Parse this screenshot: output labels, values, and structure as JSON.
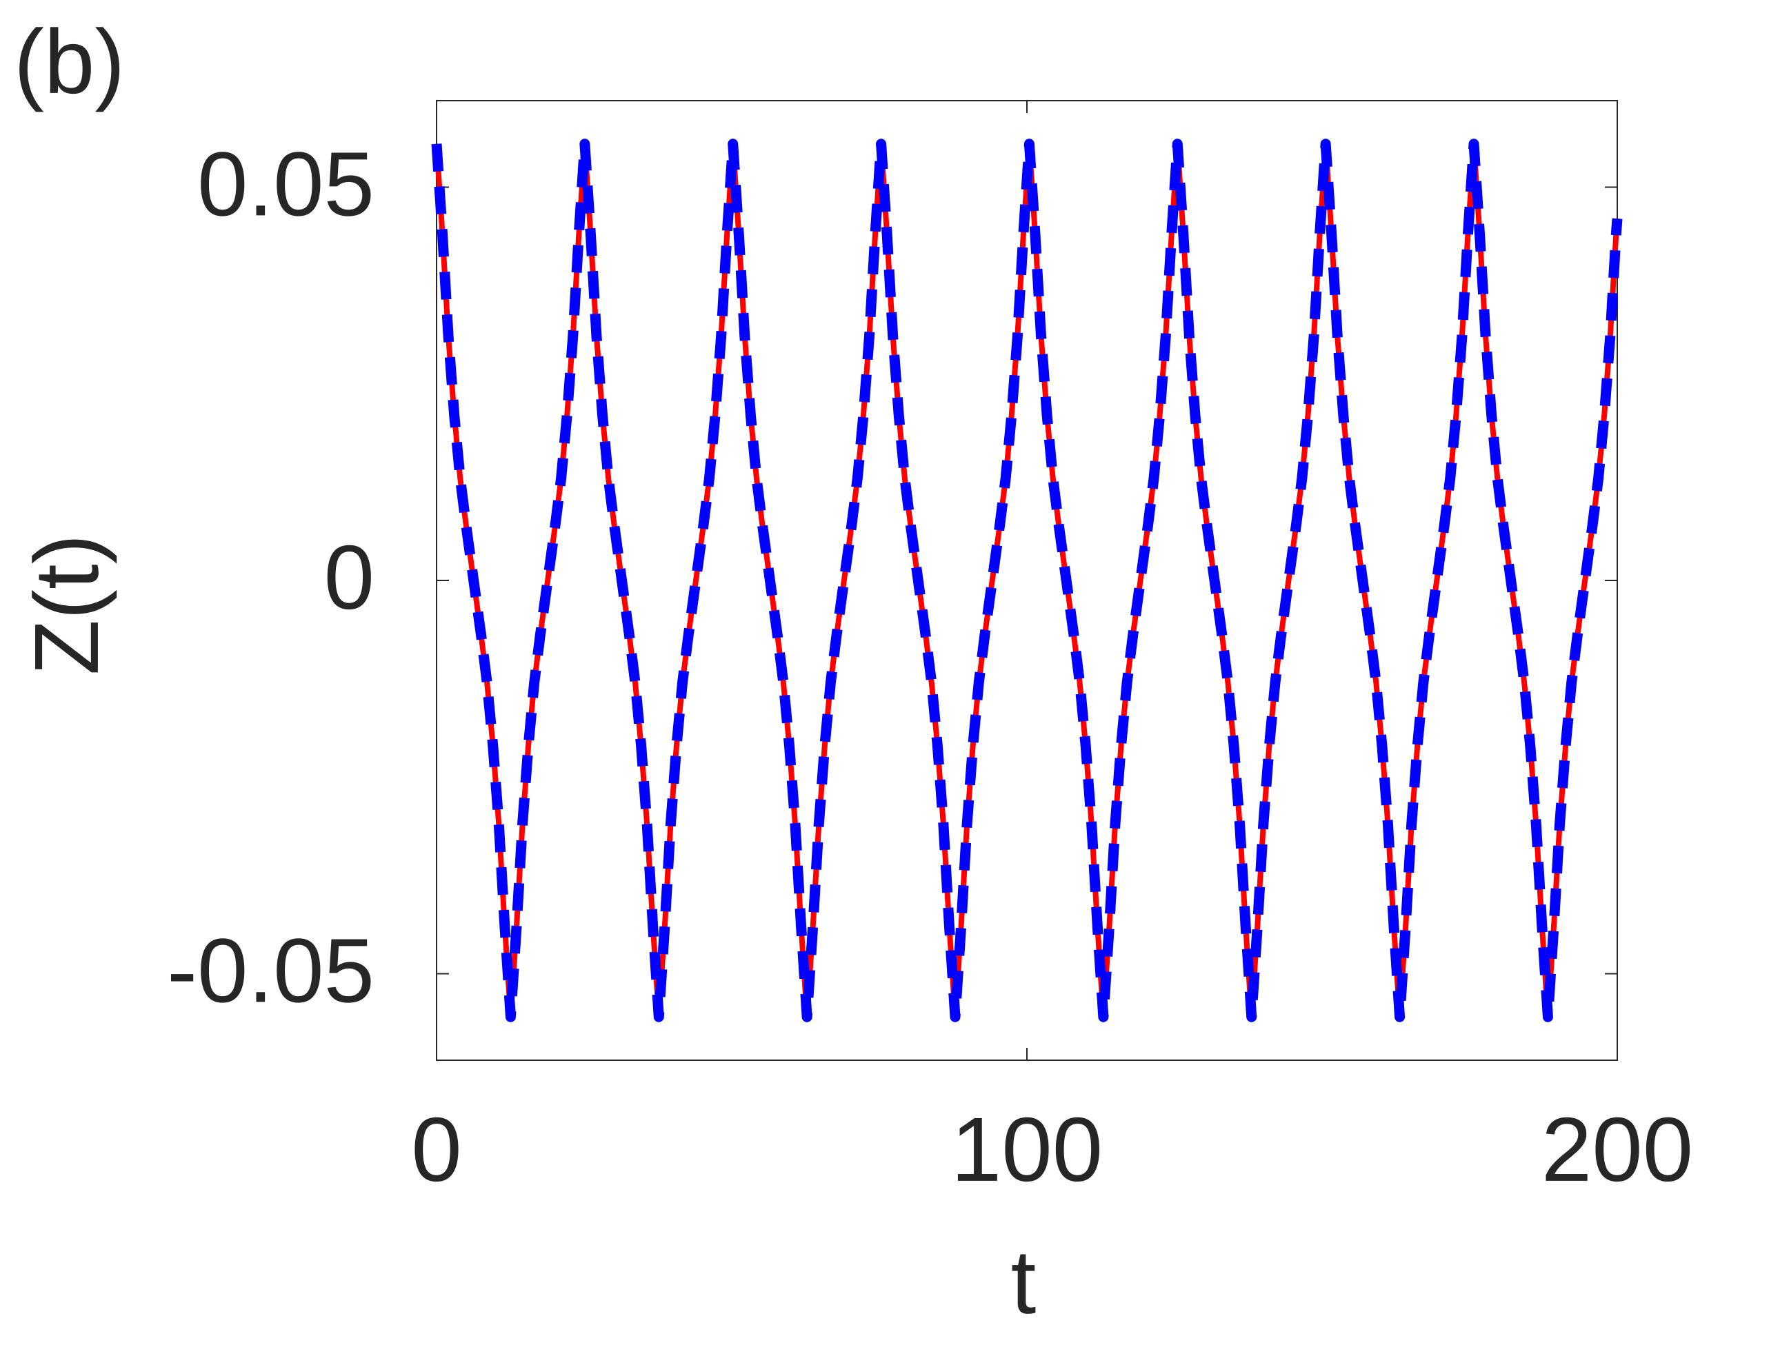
{
  "chart_data": {
    "type": "line",
    "annotation": "(b)",
    "xlabel": "t",
    "ylabel": "Z(t)",
    "x": [
      0,
      1,
      2,
      3,
      4,
      5,
      6.275,
      7.55,
      8.55,
      9.55,
      10.55,
      11.55,
      12.55,
      13.55,
      14.55,
      15.55,
      16.55,
      17.55,
      18.825,
      20.1,
      21.1,
      22.1,
      23.1,
      24.1,
      25.1,
      26.1,
      27.1,
      28.1,
      29.1,
      30.1,
      31.375,
      32.65,
      33.65,
      34.65,
      35.65,
      36.65,
      37.65,
      38.65,
      39.65,
      40.65,
      41.65,
      42.65,
      43.925,
      45.2,
      46.2,
      47.2,
      48.2,
      49.2,
      50.2,
      51.2,
      52.2,
      53.2,
      54.2,
      55.2,
      56.475,
      57.75,
      58.75,
      59.75,
      60.75,
      61.75,
      62.75,
      63.75,
      64.75,
      65.75,
      66.75,
      67.75,
      69.025,
      70.3,
      71.3,
      72.3,
      73.3,
      74.3,
      75.3,
      76.3,
      77.3,
      78.3,
      79.3,
      80.3,
      81.575,
      82.85,
      83.85,
      84.85,
      85.85,
      86.85,
      87.85,
      88.85,
      89.85,
      90.85,
      91.85,
      92.85,
      94.125,
      95.4,
      96.4,
      97.4,
      98.4,
      99.4,
      100.4,
      101.4,
      102.4,
      103.4,
      104.4,
      105.4,
      106.675,
      107.95,
      108.95,
      109.95,
      110.95,
      111.95,
      112.95,
      113.95,
      114.95,
      115.95,
      116.95,
      117.95,
      119.225,
      120.5,
      121.5,
      122.5,
      123.5,
      124.5,
      125.5,
      126.5,
      127.5,
      128.5,
      129.5,
      130.5,
      131.775,
      133.05,
      134.05,
      135.05,
      136.05,
      137.05,
      138.05,
      139.05,
      140.05,
      141.05,
      142.05,
      143.05,
      144.325,
      145.6,
      146.6,
      147.6,
      148.6,
      149.6,
      150.6,
      151.6,
      152.6,
      153.6,
      154.6,
      155.6,
      156.875,
      158.15,
      159.15,
      160.15,
      161.15,
      162.15,
      163.15,
      164.15,
      165.15,
      166.15,
      167.15,
      168.15,
      169.425,
      170.7,
      171.7,
      172.7,
      173.7,
      174.7,
      175.7,
      176.7,
      177.7,
      178.7,
      179.7,
      180.7,
      181.975,
      183.25,
      184.25,
      185.25,
      186.25,
      187.25,
      188.25,
      189.25,
      190.25,
      191.25,
      192.25,
      193.25,
      194.525,
      195.8,
      196.8,
      197.8,
      198.8,
      199.8,
      200
    ],
    "series": [
      {
        "color": "#ff0000",
        "style": "solid",
        "values": [
          0.0555,
          0.044,
          0.031,
          0.021,
          0.013,
          0.007,
          0,
          -0.007,
          -0.013,
          -0.021,
          -0.031,
          -0.044,
          -0.0555,
          -0.044,
          -0.031,
          -0.021,
          -0.013,
          -0.007,
          0,
          0.007,
          0.013,
          0.021,
          0.031,
          0.044,
          0.0555,
          0.044,
          0.031,
          0.021,
          0.013,
          0.007,
          0,
          -0.007,
          -0.013,
          -0.021,
          -0.031,
          -0.044,
          -0.0555,
          -0.044,
          -0.031,
          -0.021,
          -0.013,
          -0.007,
          0,
          0.007,
          0.013,
          0.021,
          0.031,
          0.044,
          0.0555,
          0.044,
          0.031,
          0.021,
          0.013,
          0.007,
          0,
          -0.007,
          -0.013,
          -0.021,
          -0.031,
          -0.044,
          -0.0555,
          -0.044,
          -0.031,
          -0.021,
          -0.013,
          -0.007,
          0,
          0.007,
          0.013,
          0.021,
          0.031,
          0.044,
          0.0555,
          0.044,
          0.031,
          0.021,
          0.013,
          0.007,
          0,
          -0.007,
          -0.013,
          -0.021,
          -0.031,
          -0.044,
          -0.0555,
          -0.044,
          -0.031,
          -0.021,
          -0.013,
          -0.007,
          0,
          0.007,
          0.013,
          0.021,
          0.031,
          0.044,
          0.0555,
          0.044,
          0.031,
          0.021,
          0.013,
          0.007,
          0,
          -0.007,
          -0.013,
          -0.021,
          -0.031,
          -0.044,
          -0.0555,
          -0.044,
          -0.031,
          -0.021,
          -0.013,
          -0.007,
          0,
          0.007,
          0.013,
          0.021,
          0.031,
          0.044,
          0.0555,
          0.044,
          0.031,
          0.021,
          0.013,
          0.007,
          0,
          -0.007,
          -0.013,
          -0.021,
          -0.031,
          -0.044,
          -0.0555,
          -0.044,
          -0.031,
          -0.021,
          -0.013,
          -0.007,
          0,
          0.007,
          0.013,
          0.021,
          0.031,
          0.044,
          0.0555,
          0.044,
          0.031,
          0.021,
          0.013,
          0.007,
          0,
          -0.007,
          -0.013,
          -0.021,
          -0.031,
          -0.044,
          -0.0555,
          -0.044,
          -0.031,
          -0.021,
          -0.013,
          -0.007,
          0,
          0.007,
          0.013,
          0.021,
          0.031,
          0.044,
          0.0555,
          0.044,
          0.031,
          0.021,
          0.013,
          0.007,
          0,
          -0.007,
          -0.013,
          -0.021,
          -0.031,
          -0.044,
          -0.0555,
          -0.044,
          -0.031,
          -0.021,
          -0.013,
          -0.007,
          0,
          0.007,
          0.013,
          0.021,
          0.031,
          0.044,
          0.046
        ]
      },
      {
        "color": "#0000ff",
        "style": "dashed",
        "values": [
          0.0555,
          0.044,
          0.031,
          0.021,
          0.013,
          0.007,
          0,
          -0.007,
          -0.013,
          -0.021,
          -0.031,
          -0.044,
          -0.0555,
          -0.044,
          -0.031,
          -0.021,
          -0.013,
          -0.007,
          0,
          0.007,
          0.013,
          0.021,
          0.031,
          0.044,
          0.0555,
          0.044,
          0.031,
          0.021,
          0.013,
          0.007,
          0,
          -0.007,
          -0.013,
          -0.021,
          -0.031,
          -0.044,
          -0.0555,
          -0.044,
          -0.031,
          -0.021,
          -0.013,
          -0.007,
          0,
          0.007,
          0.013,
          0.021,
          0.031,
          0.044,
          0.0555,
          0.044,
          0.031,
          0.021,
          0.013,
          0.007,
          0,
          -0.007,
          -0.013,
          -0.021,
          -0.031,
          -0.044,
          -0.0555,
          -0.044,
          -0.031,
          -0.021,
          -0.013,
          -0.007,
          0,
          0.007,
          0.013,
          0.021,
          0.031,
          0.044,
          0.0555,
          0.044,
          0.031,
          0.021,
          0.013,
          0.007,
          0,
          -0.007,
          -0.013,
          -0.021,
          -0.031,
          -0.044,
          -0.0555,
          -0.044,
          -0.031,
          -0.021,
          -0.013,
          -0.007,
          0,
          0.007,
          0.013,
          0.021,
          0.031,
          0.044,
          0.0555,
          0.044,
          0.031,
          0.021,
          0.013,
          0.007,
          0,
          -0.007,
          -0.013,
          -0.021,
          -0.031,
          -0.044,
          -0.0555,
          -0.044,
          -0.031,
          -0.021,
          -0.013,
          -0.007,
          0,
          0.007,
          0.013,
          0.021,
          0.031,
          0.044,
          0.0555,
          0.044,
          0.031,
          0.021,
          0.013,
          0.007,
          0,
          -0.007,
          -0.013,
          -0.021,
          -0.031,
          -0.044,
          -0.0555,
          -0.044,
          -0.031,
          -0.021,
          -0.013,
          -0.007,
          0,
          0.007,
          0.013,
          0.021,
          0.031,
          0.044,
          0.0555,
          0.044,
          0.031,
          0.021,
          0.013,
          0.007,
          0,
          -0.007,
          -0.013,
          -0.021,
          -0.031,
          -0.044,
          -0.0555,
          -0.044,
          -0.031,
          -0.021,
          -0.013,
          -0.007,
          0,
          0.007,
          0.013,
          0.021,
          0.031,
          0.044,
          0.0555,
          0.044,
          0.031,
          0.021,
          0.013,
          0.007,
          0,
          -0.007,
          -0.013,
          -0.021,
          -0.031,
          -0.044,
          -0.0555,
          -0.044,
          -0.031,
          -0.021,
          -0.013,
          -0.007,
          0,
          0.007,
          0.013,
          0.021,
          0.031,
          0.044,
          0.046
        ]
      }
    ],
    "xlim": [
      0,
      200
    ],
    "xticks": [
      0,
      100,
      200
    ],
    "ylim": [
      -0.061,
      0.061
    ],
    "yticks": [
      -0.05,
      0,
      0.05
    ]
  }
}
